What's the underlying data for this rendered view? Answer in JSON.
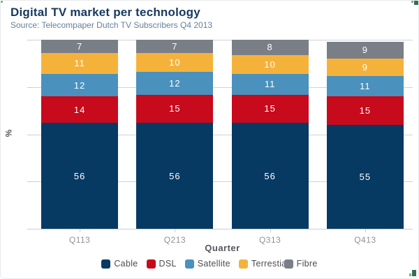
{
  "header": {
    "title": "Digital TV market per technology",
    "subtitle": "Source: Telecompaper Dutch TV Subscribers Q4 2013"
  },
  "chart_data": {
    "type": "bar",
    "variant": "stacked-column",
    "title": "Digital TV market per technology",
    "subtitle": "Source: Telecompaper Dutch TV Subscribers Q4 2013",
    "xlabel": "Quarter",
    "ylabel": "%",
    "categories": [
      "Q113",
      "Q213",
      "Q313",
      "Q413"
    ],
    "series": [
      {
        "name": "Cable",
        "color": "#073a63",
        "values": [
          56,
          56,
          56,
          55
        ]
      },
      {
        "name": "DSL",
        "color": "#c70a1c",
        "values": [
          14,
          15,
          15,
          15
        ]
      },
      {
        "name": "Satellite",
        "color": "#4a91bd",
        "values": [
          12,
          12,
          11,
          11
        ]
      },
      {
        "name": "Terrestial",
        "color": "#f5b23b",
        "values": [
          11,
          10,
          10,
          9
        ]
      },
      {
        "name": "Fibre",
        "color": "#7a7e87",
        "values": [
          7,
          7,
          8,
          9
        ]
      }
    ],
    "ylim": [
      0,
      100
    ],
    "yticks": [
      0,
      25,
      50,
      75,
      100
    ],
    "grid": true,
    "legend_position": "bottom",
    "data_labels": true
  },
  "colors": {
    "title_text": "#173a60",
    "subtitle_text": "#66809b",
    "axis_title_text": "#54565c",
    "axis_label_text": "#8e9299",
    "legend_text": "#4d4d4d",
    "gridline": "#ccd3db",
    "axis_line": "#c6cdd5",
    "data_label_text": "#ffffff",
    "background": "#ffffff",
    "corner_glyph_dark_green": "#34704f",
    "corner_glyph_light_green": "#86ac92"
  }
}
